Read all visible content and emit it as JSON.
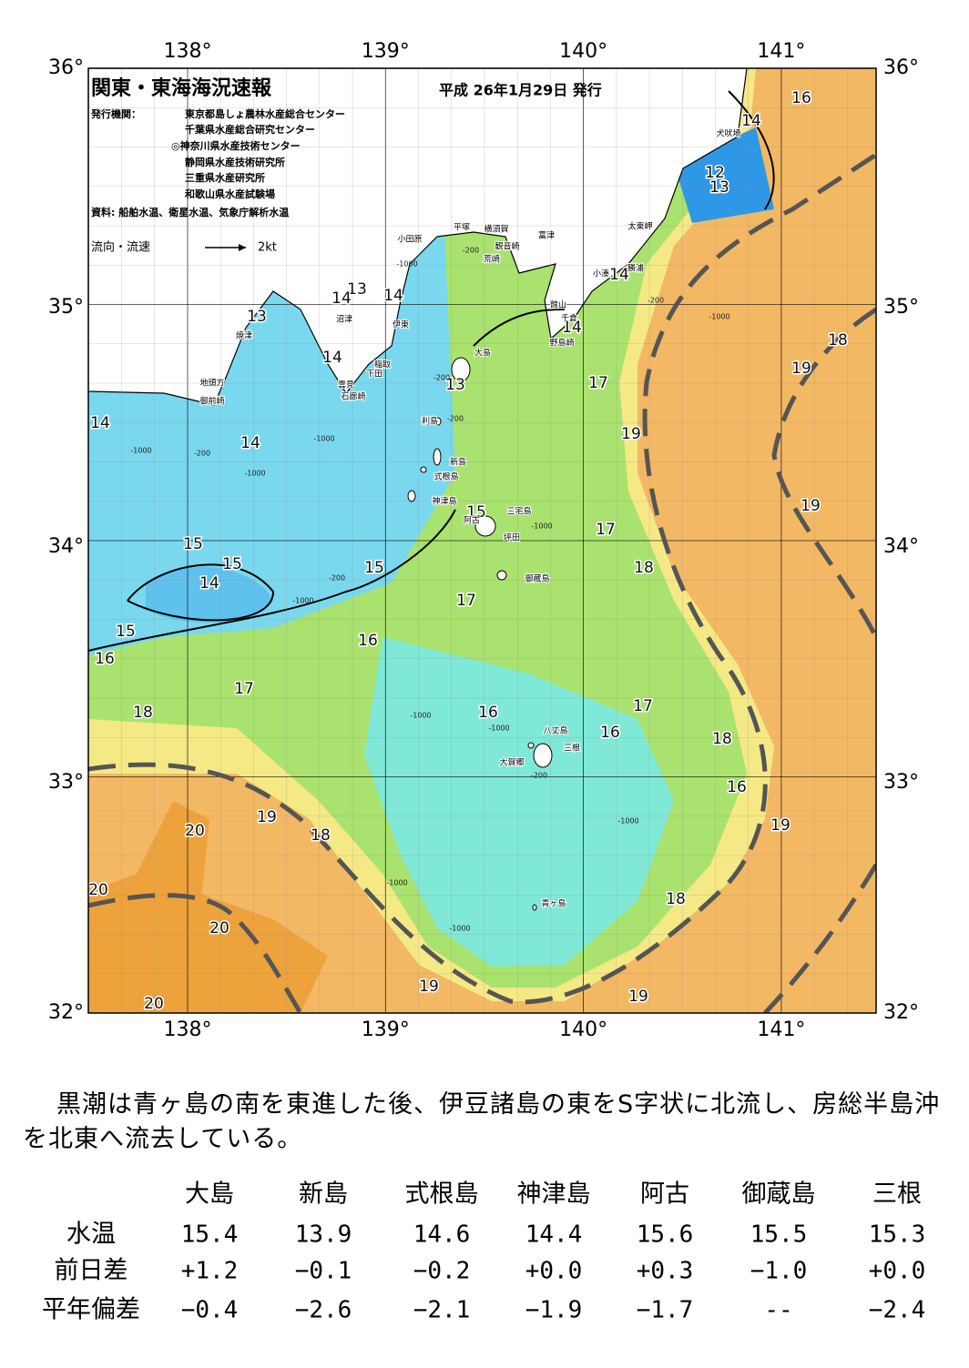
{
  "header": {
    "title": "関東・東海海況速報",
    "issue_date": "平成 26年1月29日 発行",
    "publisher_label": "発行機関：",
    "publishers": [
      "東京都島しょ農林水産総合センター",
      "千葉県水産総合研究センター",
      "◎神奈川県水産技術センター",
      "静岡県水産技術研究所",
      "三重県水産研究所",
      "和歌山県水産試験場"
    ],
    "source": "資料: 船舶水温、衛星水温、気象庁解析水温",
    "legend_label": "流向・流速",
    "legend_scale": "2kt"
  },
  "map": {
    "lon_labels": [
      "138°",
      "139°",
      "140°",
      "141°"
    ],
    "lat_labels": [
      "36°",
      "35°",
      "34°",
      "33°",
      "32°"
    ],
    "contour_labels": [
      "16",
      "14",
      "12",
      "13",
      "13",
      "14",
      "14",
      "14",
      "14",
      "13",
      "14",
      "13",
      "17",
      "19",
      "18",
      "19",
      "14",
      "14",
      "15",
      "19",
      "17",
      "15",
      "15",
      "14",
      "15",
      "18",
      "17",
      "15",
      "16",
      "16",
      "17",
      "16",
      "17",
      "18",
      "16",
      "18",
      "16",
      "20",
      "19",
      "18",
      "19",
      "20",
      "18",
      "20",
      "19",
      "19",
      "20"
    ],
    "depth_labels": [
      "-200",
      "-1000",
      "-200",
      "-200",
      "-1000",
      "-200",
      "-1000",
      "-1000",
      "-1000",
      "-200",
      "-1000",
      "-1000",
      "-1000",
      "-200",
      "-1000",
      "-1000",
      "-1000",
      "-200",
      "-1000"
    ],
    "places": [
      "犬吠埼",
      "太東岬",
      "勝浦",
      "小湊",
      "富津",
      "横須賀",
      "観音崎",
      "荒崎",
      "平塚",
      "小田原",
      "館山",
      "千倉",
      "野島崎",
      "沼津",
      "伊東",
      "焼津",
      "稲取",
      "下田",
      "雲見",
      "石廊崎",
      "地頭方",
      "御前崎",
      "大島",
      "利島",
      "新島",
      "式根島",
      "神津島",
      "三宅島",
      "阿古",
      "坪田",
      "御蔵島",
      "八丈島",
      "三根",
      "大賀郷",
      "青ヶ島"
    ]
  },
  "summary": "黒潮は青ヶ島の南を東進した後、伊豆諸島の東をS字状に北流し、房総半島沖を北東へ流去している。",
  "table": {
    "columns": [
      "大島",
      "新島",
      "式根島",
      "神津島",
      "阿古",
      "御蔵島",
      "三根"
    ],
    "rows": [
      {
        "label": "水温",
        "values": [
          "15.4",
          "13.9",
          "14.6",
          "14.4",
          "15.6",
          "15.5",
          "15.3"
        ]
      },
      {
        "label": "前日差",
        "values": [
          "+1.2",
          "−0.1",
          "−0.2",
          "+0.0",
          "+0.3",
          "−1.0",
          "+0.0"
        ]
      },
      {
        "label": "平年偏差",
        "values": [
          "−0.4",
          "−2.6",
          "−2.1",
          "−1.9",
          "−1.7",
          "--",
          "−2.4"
        ]
      }
    ]
  }
}
